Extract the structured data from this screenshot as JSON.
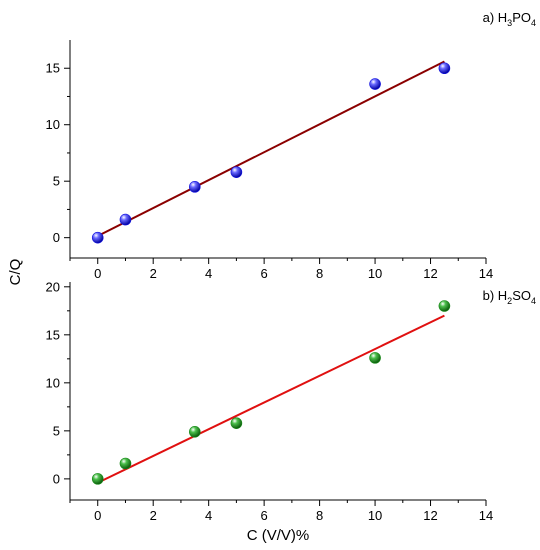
{
  "chart_data": [
    {
      "type": "scatter",
      "title": "a) H₃PO₄",
      "label_prefix": "a) ",
      "formula": [
        [
          "H",
          ""
        ],
        [
          "3",
          "sub"
        ],
        [
          "PO",
          ""
        ],
        [
          "4",
          "sub"
        ]
      ],
      "xlim": [
        -1,
        14
      ],
      "ylim": [
        -1.8,
        17.5
      ],
      "xticks": [
        0,
        2,
        4,
        6,
        8,
        10,
        12,
        14
      ],
      "yticks": [
        0,
        5,
        10,
        15
      ],
      "x": [
        0,
        1,
        3.5,
        5,
        10,
        12.5
      ],
      "y": [
        0,
        1.6,
        4.5,
        5.8,
        13.6,
        15.0
      ],
      "fit": {
        "x": [
          0,
          12.5
        ],
        "y": [
          0.15,
          15.6
        ]
      },
      "marker_color": "#1515e0",
      "line_color": "#8b0000",
      "grid": false
    },
    {
      "type": "scatter",
      "title": "b) H₂SO₄",
      "label_prefix": "b) ",
      "formula": [
        [
          "H",
          ""
        ],
        [
          "2",
          "sub"
        ],
        [
          "SO",
          ""
        ],
        [
          "4",
          "sub"
        ]
      ],
      "xlim": [
        -1,
        14
      ],
      "ylim": [
        -2.2,
        20.5
      ],
      "xticks": [
        0,
        2,
        4,
        6,
        8,
        10,
        12,
        14
      ],
      "yticks": [
        0,
        5,
        10,
        15,
        20
      ],
      "x": [
        0,
        1,
        3.5,
        5,
        10,
        12.5
      ],
      "y": [
        0,
        1.6,
        4.9,
        5.8,
        12.6,
        18.0
      ],
      "fit": {
        "x": [
          0,
          12.5
        ],
        "y": [
          -0.4,
          17.0
        ]
      },
      "marker_color": "#1a8a1a",
      "line_color": "#e01010",
      "grid": false
    }
  ],
  "ylabel": "C/Q",
  "xlabel": "C (V/V)%"
}
